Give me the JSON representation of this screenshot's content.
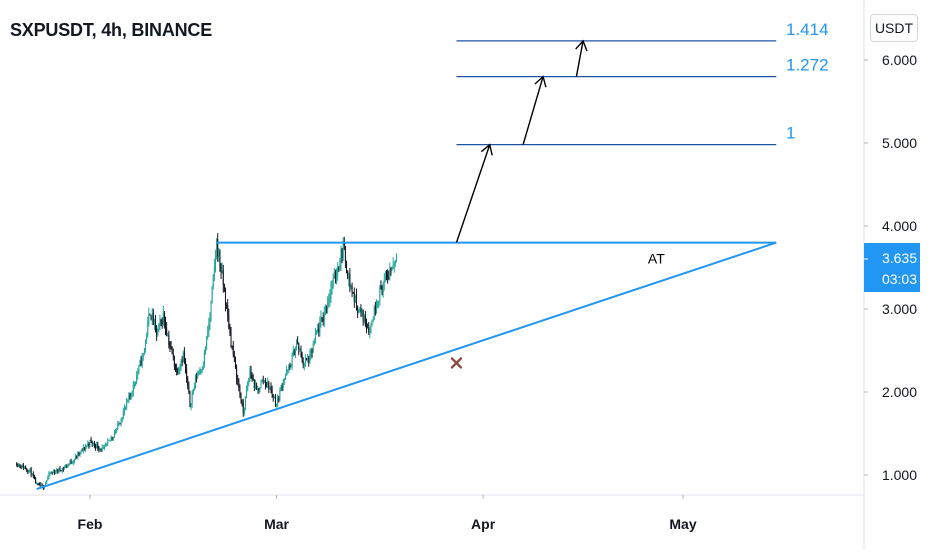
{
  "header": {
    "symbol_title": "SXPUSDT, 4h, BINANCE",
    "unit": "USDT"
  },
  "price_badge": {
    "price": "3.635",
    "countdown": "03:03",
    "color": "#2196f3"
  },
  "colors": {
    "up": "#26a69a",
    "down": "#131722",
    "line": "#2196f3",
    "fib_line": "#1e53a5",
    "fib_label": "#2196f3",
    "axis_text": "#131722",
    "cross": "#8b4a3e"
  },
  "chart_data": {
    "type": "candlestick",
    "x_ticks": [
      {
        "label": "Feb",
        "date": "2021-02-01"
      },
      {
        "label": "Mar",
        "date": "2021-03-01"
      },
      {
        "label": "Apr",
        "date": "2021-04-01"
      },
      {
        "label": "May",
        "date": "2021-05-01"
      }
    ],
    "y_ticks": [
      "1.000",
      "2.000",
      "3.000",
      "4.000",
      "5.000",
      "6.000"
    ],
    "ylim": [
      0.7,
      6.5
    ],
    "price_path": [
      [
        "2021-01-21",
        1.14
      ],
      [
        "2021-01-23",
        1.05
      ],
      [
        "2021-01-24",
        0.88
      ],
      [
        "2021-01-25",
        0.86
      ],
      [
        "2021-01-26",
        1.02
      ],
      [
        "2021-01-28",
        1.08
      ],
      [
        "2021-01-30",
        1.22
      ],
      [
        "2021-02-01",
        1.4
      ],
      [
        "2021-02-03",
        1.3
      ],
      [
        "2021-02-05",
        1.55
      ],
      [
        "2021-02-07",
        1.95
      ],
      [
        "2021-02-09",
        2.45
      ],
      [
        "2021-02-10",
        2.98
      ],
      [
        "2021-02-11",
        2.7
      ],
      [
        "2021-02-12",
        2.92
      ],
      [
        "2021-02-13",
        2.55
      ],
      [
        "2021-02-14",
        2.25
      ],
      [
        "2021-02-15",
        2.45
      ],
      [
        "2021-02-16",
        1.85
      ],
      [
        "2021-02-17",
        2.2
      ],
      [
        "2021-02-18",
        2.35
      ],
      [
        "2021-02-19",
        2.9
      ],
      [
        "2021-02-20",
        3.8
      ],
      [
        "2021-02-21",
        3.3
      ],
      [
        "2021-02-22",
        2.7
      ],
      [
        "2021-02-23",
        2.2
      ],
      [
        "2021-02-24",
        1.75
      ],
      [
        "2021-02-25",
        2.25
      ],
      [
        "2021-02-26",
        2.0
      ],
      [
        "2021-02-27",
        2.15
      ],
      [
        "2021-02-28",
        2.05
      ],
      [
        "2021-03-01",
        1.85
      ],
      [
        "2021-03-02",
        2.15
      ],
      [
        "2021-03-03",
        2.3
      ],
      [
        "2021-03-04",
        2.6
      ],
      [
        "2021-03-05",
        2.35
      ],
      [
        "2021-03-06",
        2.4
      ],
      [
        "2021-03-07",
        2.7
      ],
      [
        "2021-03-08",
        2.9
      ],
      [
        "2021-03-09",
        3.2
      ],
      [
        "2021-03-10",
        3.45
      ],
      [
        "2021-03-11",
        3.75
      ],
      [
        "2021-03-12",
        3.3
      ],
      [
        "2021-03-13",
        3.05
      ],
      [
        "2021-03-14",
        2.9
      ],
      [
        "2021-03-15",
        2.75
      ],
      [
        "2021-03-16",
        3.1
      ],
      [
        "2021-03-17",
        3.3
      ],
      [
        "2021-03-18",
        3.45
      ],
      [
        "2021-03-19",
        3.63
      ]
    ],
    "annotations": {
      "resistance": {
        "start": "2021-02-20",
        "end": "2021-05-15",
        "price": 3.8
      },
      "trendline": {
        "start": [
          "2021-01-24",
          0.83
        ],
        "end": [
          "2021-05-15",
          3.8
        ]
      },
      "pattern_label": {
        "text": "AT",
        "date": "2021-04-27",
        "price": 3.55
      },
      "invalidation": {
        "date": "2021-03-28",
        "price": 2.35
      },
      "fib_levels": [
        {
          "label": "1",
          "price": 4.98,
          "start": "2021-03-28",
          "end": "2021-05-15"
        },
        {
          "label": "1.272",
          "price": 5.8,
          "start": "2021-03-28",
          "end": "2021-05-15"
        },
        {
          "label": "1.414",
          "price": 6.23,
          "start": "2021-03-28",
          "end": "2021-05-15"
        }
      ],
      "arrows": [
        {
          "from": [
            "2021-03-28",
            3.8
          ],
          "to": [
            "2021-04-02",
            4.98
          ]
        },
        {
          "from": [
            "2021-04-07",
            4.98
          ],
          "to": [
            "2021-04-10",
            5.8
          ]
        },
        {
          "from": [
            "2021-04-15",
            5.8
          ],
          "to": [
            "2021-04-16",
            6.23
          ]
        }
      ]
    }
  }
}
